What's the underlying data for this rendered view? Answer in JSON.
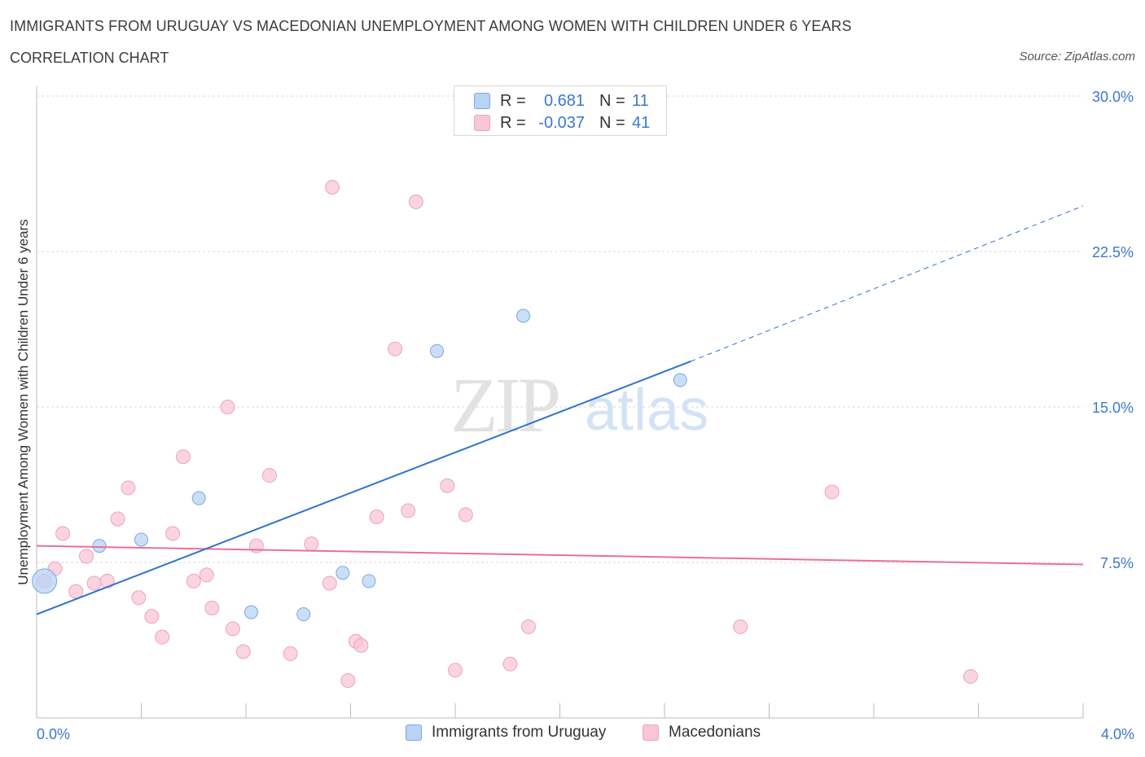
{
  "header": {
    "title": "IMMIGRANTS FROM URUGUAY VS MACEDONIAN UNEMPLOYMENT AMONG WOMEN WITH CHILDREN UNDER 6 YEARS",
    "subtitle": "CORRELATION CHART",
    "source": "Source: ZipAtlas.com"
  },
  "watermark": {
    "zip": "ZIP",
    "atlas": "atlas"
  },
  "colors": {
    "series1_fill": "#b9d3f5",
    "series1_stroke": "#7aa7e3",
    "series1_line": "#2f72d0",
    "series2_fill": "#f8c6d5",
    "series2_stroke": "#eea4bb",
    "series2_line": "#e8709a",
    "tick_label": "#3a78cf",
    "grid": "#d9d9d9",
    "axis": "#bbbbbb"
  },
  "legend": {
    "rows": [
      {
        "r_label": "R =",
        "r_value": "0.681",
        "n_label": "N =",
        "n_value": "11"
      },
      {
        "r_label": "R =",
        "r_value": "-0.037",
        "n_label": "N =",
        "n_value": "41"
      }
    ]
  },
  "bottom_legend": {
    "series1": "Immigrants from Uruguay",
    "series2": "Macedonians"
  },
  "chart_data": {
    "type": "scatter",
    "title": "IMMIGRANTS FROM URUGUAY VS MACEDONIAN UNEMPLOYMENT AMONG WOMEN WITH CHILDREN UNDER 6 YEARS",
    "xlabel": "",
    "ylabel": "Unemployment Among Women with Children Under 6 years",
    "xlim": [
      0,
      4.0
    ],
    "ylim": [
      0,
      30.0
    ],
    "x_tick_labels": [
      "0.0%",
      "4.0%"
    ],
    "y_ticks": [
      7.5,
      15.0,
      22.5,
      30.0
    ],
    "y_tick_labels": [
      "7.5%",
      "15.0%",
      "22.5%",
      "30.0%"
    ],
    "grid": true,
    "series": [
      {
        "name": "Immigrants from Uruguay",
        "R": 0.681,
        "N": 11,
        "points": [
          {
            "x": 0.03,
            "y": 6.6,
            "big": true
          },
          {
            "x": 0.24,
            "y": 8.3
          },
          {
            "x": 0.4,
            "y": 8.6
          },
          {
            "x": 0.62,
            "y": 10.6
          },
          {
            "x": 0.82,
            "y": 5.1
          },
          {
            "x": 1.02,
            "y": 5.0
          },
          {
            "x": 1.17,
            "y": 7.0
          },
          {
            "x": 1.27,
            "y": 6.6
          },
          {
            "x": 1.53,
            "y": 17.7
          },
          {
            "x": 1.86,
            "y": 19.4
          },
          {
            "x": 2.46,
            "y": 16.3
          }
        ],
        "trend": {
          "x0": 0.0,
          "y0": 5.0,
          "x1": 2.5,
          "y1": 17.2,
          "dashed_to_x": 4.0,
          "dashed_to_y": 24.7
        }
      },
      {
        "name": "Macedonians",
        "R": -0.037,
        "N": 41,
        "points": [
          {
            "x": 0.03,
            "y": 6.6
          },
          {
            "x": 0.07,
            "y": 7.2
          },
          {
            "x": 0.1,
            "y": 8.9
          },
          {
            "x": 0.15,
            "y": 6.1
          },
          {
            "x": 0.19,
            "y": 7.8
          },
          {
            "x": 0.22,
            "y": 6.5
          },
          {
            "x": 0.27,
            "y": 6.6
          },
          {
            "x": 0.31,
            "y": 9.6
          },
          {
            "x": 0.35,
            "y": 11.1
          },
          {
            "x": 0.39,
            "y": 5.8
          },
          {
            "x": 0.44,
            "y": 4.9
          },
          {
            "x": 0.48,
            "y": 3.9
          },
          {
            "x": 0.52,
            "y": 8.9
          },
          {
            "x": 0.56,
            "y": 12.6
          },
          {
            "x": 0.6,
            "y": 6.6
          },
          {
            "x": 0.65,
            "y": 6.9
          },
          {
            "x": 0.67,
            "y": 5.3
          },
          {
            "x": 0.73,
            "y": 15.0
          },
          {
            "x": 0.75,
            "y": 4.3
          },
          {
            "x": 0.79,
            "y": 3.2
          },
          {
            "x": 0.84,
            "y": 8.3
          },
          {
            "x": 0.89,
            "y": 11.7
          },
          {
            "x": 0.97,
            "y": 3.1
          },
          {
            "x": 1.05,
            "y": 8.4
          },
          {
            "x": 1.12,
            "y": 6.5
          },
          {
            "x": 1.13,
            "y": 25.6
          },
          {
            "x": 1.19,
            "y": 1.8
          },
          {
            "x": 1.22,
            "y": 3.7
          },
          {
            "x": 1.24,
            "y": 3.5
          },
          {
            "x": 1.3,
            "y": 9.7
          },
          {
            "x": 1.37,
            "y": 17.8
          },
          {
            "x": 1.42,
            "y": 10.0
          },
          {
            "x": 1.45,
            "y": 24.9
          },
          {
            "x": 1.57,
            "y": 11.2
          },
          {
            "x": 1.6,
            "y": 2.3
          },
          {
            "x": 1.64,
            "y": 9.8
          },
          {
            "x": 1.81,
            "y": 2.6
          },
          {
            "x": 1.88,
            "y": 4.4
          },
          {
            "x": 2.69,
            "y": 4.4
          },
          {
            "x": 3.04,
            "y": 10.9
          },
          {
            "x": 3.57,
            "y": 2.0
          }
        ],
        "trend": {
          "x0": 0.0,
          "y0": 8.3,
          "x1": 4.0,
          "y1": 7.4
        }
      }
    ]
  }
}
